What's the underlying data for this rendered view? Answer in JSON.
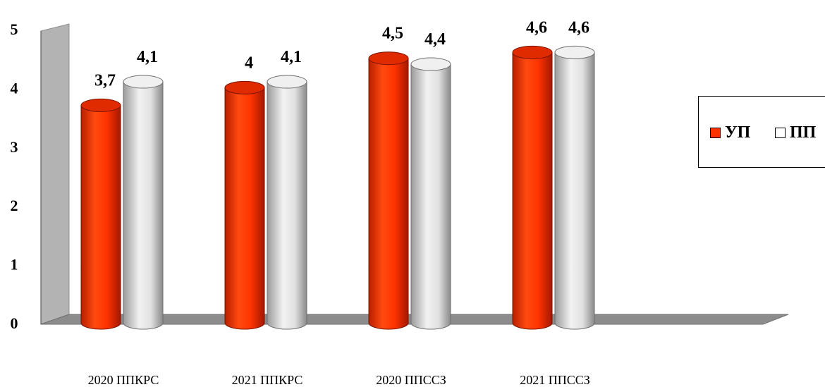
{
  "chart_data": {
    "type": "bar",
    "categories": [
      "2020 ППКРС",
      "2021 ППКРС",
      "2020 ППССЗ",
      "2021 ППССЗ"
    ],
    "series": [
      {
        "name": "УП",
        "values": [
          3.7,
          4,
          4.5,
          4.6
        ],
        "labels": [
          "3,7",
          "4",
          "4,5",
          "4,6"
        ],
        "color": "#ff3300"
      },
      {
        "name": "ПП",
        "values": [
          4.1,
          4.1,
          4.4,
          4.6
        ],
        "labels": [
          "4,1",
          "4,1",
          "4,4",
          "4,6"
        ],
        "color": "#d9d9d9"
      }
    ],
    "yticks": [
      "0",
      "1",
      "2",
      "3",
      "4",
      "5"
    ],
    "ylim": [
      0,
      5
    ],
    "legend_position": "right",
    "style": "3d-cylinder"
  },
  "legend": {
    "items": [
      {
        "label": "УП",
        "color": "#ff3300"
      },
      {
        "label": "ПП",
        "color": "#d9d9d9"
      }
    ]
  }
}
